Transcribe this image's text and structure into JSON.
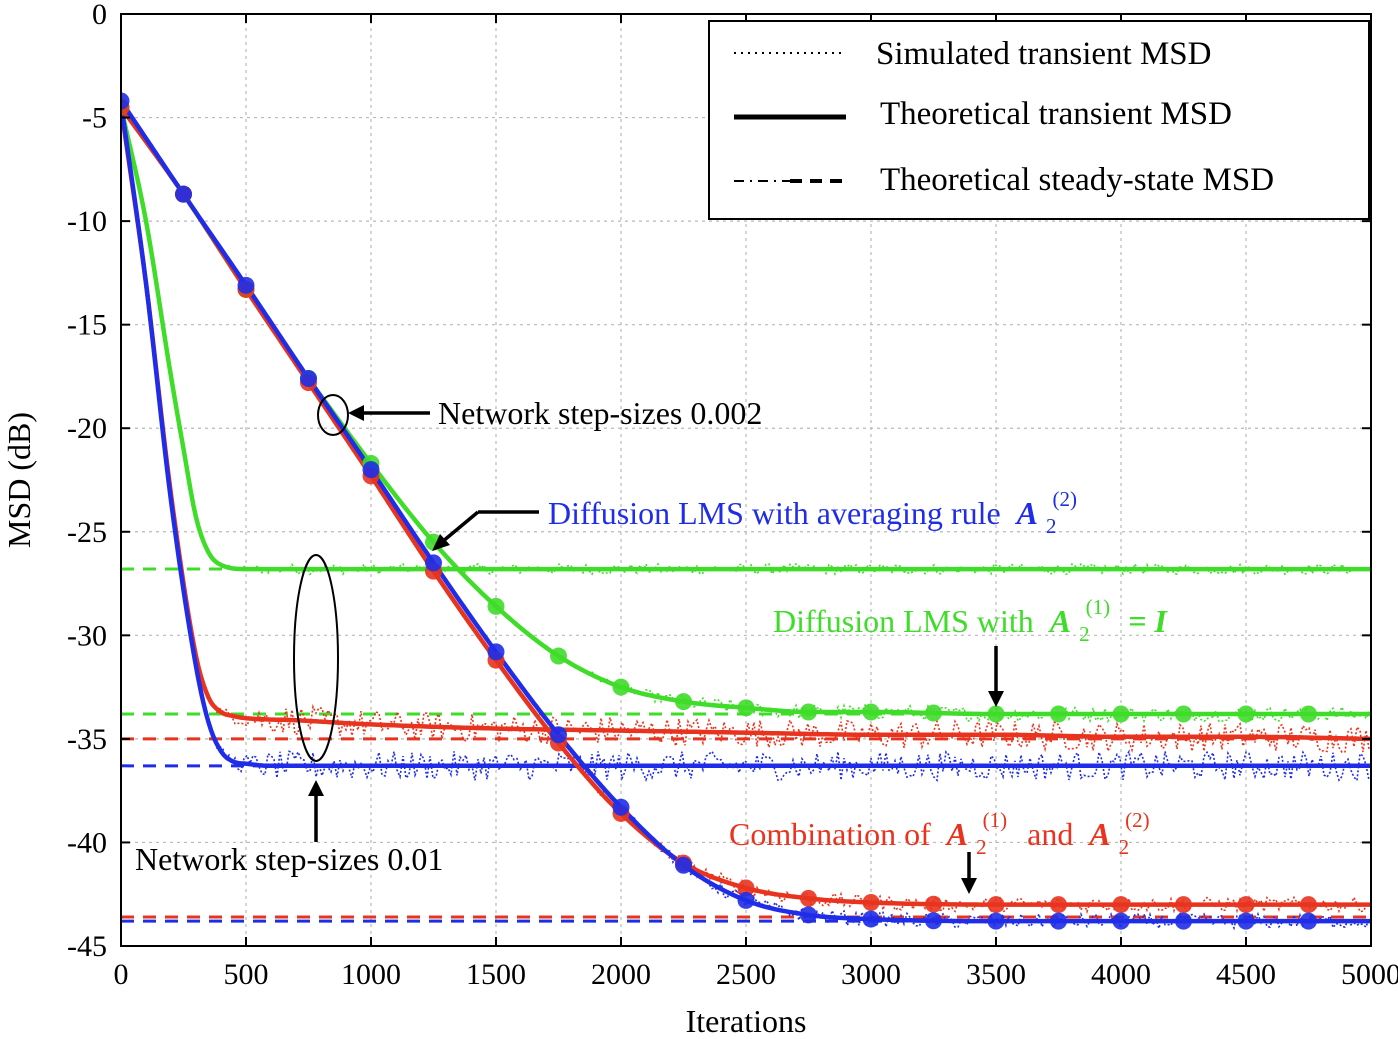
{
  "chart_data": {
    "type": "line",
    "title": "",
    "xlabel": "Iterations",
    "ylabel": "MSD (dB)",
    "xlim": [
      0,
      5000
    ],
    "ylim": [
      -45,
      0
    ],
    "xticks": [
      0,
      500,
      1000,
      1500,
      2000,
      2500,
      3000,
      3500,
      4000,
      4500,
      5000
    ],
    "yticks": [
      0,
      -5,
      -10,
      -15,
      -20,
      -25,
      -30,
      -35,
      -40,
      -45
    ],
    "xtick_labels": [
      "0",
      "500",
      "1000",
      "1500",
      "2000",
      "2500",
      "3000",
      "3500",
      "4000",
      "4500",
      "5000"
    ],
    "ytick_labels": [
      "0",
      "-5",
      "-10",
      "-15",
      "-20",
      "-25",
      "-30",
      "-35",
      "-40",
      "-45"
    ],
    "grid": true,
    "legend_position": "top-right",
    "legend": [
      {
        "label": "Simulated transient MSD",
        "style": "dotted"
      },
      {
        "label": "Theoretical transient MSD",
        "style": "solid"
      },
      {
        "label": "Theoretical steady-state MSD",
        "style": "dash-dot"
      }
    ],
    "colors": {
      "blue": "#1f2de8",
      "green": "#3fdc2a",
      "red": "#e8341f"
    },
    "series": [
      {
        "name": "Diffusion LMS with averaging rule, step-size 0.002",
        "color": "blue",
        "x": [
          0,
          250,
          500,
          750,
          1000,
          1250,
          1500,
          1750,
          2000,
          2250,
          2500,
          2750,
          3000,
          3500,
          4000,
          4500,
          5000
        ],
        "values": [
          -4.2,
          -8.7,
          -13.1,
          -17.6,
          -22.0,
          -26.5,
          -30.8,
          -34.8,
          -38.3,
          -41.1,
          -42.8,
          -43.5,
          -43.7,
          -43.8,
          -43.8,
          -43.8,
          -43.8
        ]
      },
      {
        "name": "Diffusion LMS with A2(1)=I, step-size 0.002",
        "color": "green",
        "x": [
          0,
          250,
          500,
          750,
          1000,
          1250,
          1500,
          1750,
          2000,
          2250,
          2500,
          2750,
          3000,
          3500,
          4000,
          4500,
          5000
        ],
        "values": [
          -4.5,
          -8.7,
          -13.3,
          -17.6,
          -21.7,
          -25.5,
          -28.6,
          -31.0,
          -32.5,
          -33.2,
          -33.5,
          -33.7,
          -33.7,
          -33.8,
          -33.8,
          -33.8,
          -33.8
        ]
      },
      {
        "name": "Combination of A2(1) and A2(2), step-size 0.002",
        "color": "red",
        "x": [
          0,
          250,
          500,
          750,
          1000,
          1250,
          1500,
          1750,
          2000,
          2250,
          2500,
          2750,
          3000,
          3500,
          4000,
          4500,
          5000
        ],
        "values": [
          -4.5,
          -8.7,
          -13.3,
          -17.8,
          -22.3,
          -26.9,
          -31.2,
          -35.2,
          -38.6,
          -41.0,
          -42.2,
          -42.7,
          -42.9,
          -43.0,
          -43.0,
          -43.0,
          -43.0
        ]
      },
      {
        "name": "Diffusion LMS with averaging rule, step-size 0.01",
        "color": "blue",
        "x": [
          0,
          100,
          200,
          300,
          350,
          400,
          450,
          500,
          600,
          800,
          1000,
          2000,
          3000,
          4000,
          5000
        ],
        "values": [
          -4.3,
          -13.0,
          -23.5,
          -31.5,
          -34.2,
          -35.6,
          -36.1,
          -36.2,
          -36.3,
          -36.3,
          -36.3,
          -36.3,
          -36.3,
          -36.3,
          -36.3
        ]
      },
      {
        "name": "Diffusion LMS with A2(1)=I, step-size 0.01",
        "color": "green",
        "x": [
          0,
          100,
          200,
          250,
          300,
          350,
          400,
          500,
          600,
          800,
          1000,
          2000,
          3000,
          4000,
          5000
        ],
        "values": [
          -4.5,
          -10.0,
          -17.5,
          -21.0,
          -24.3,
          -26.0,
          -26.6,
          -26.8,
          -26.8,
          -26.8,
          -26.8,
          -26.8,
          -26.8,
          -26.8,
          -26.8
        ]
      },
      {
        "name": "Combination of A2(1) and A2(2), step-size 0.01",
        "color": "red",
        "x": [
          0,
          100,
          200,
          300,
          350,
          400,
          450,
          500,
          700,
          1000,
          1500,
          2000,
          2500,
          3000,
          3500,
          4000,
          4500,
          5000
        ],
        "values": [
          -4.5,
          -13.0,
          -23.2,
          -31.0,
          -33.0,
          -33.7,
          -33.9,
          -34.0,
          -34.1,
          -34.3,
          -34.5,
          -34.6,
          -34.7,
          -34.8,
          -34.8,
          -34.9,
          -34.9,
          -35.0
        ]
      }
    ],
    "steady_state": [
      {
        "value": -26.8,
        "color": "green"
      },
      {
        "value": -33.8,
        "color": "green"
      },
      {
        "value": -35.0,
        "color": "red"
      },
      {
        "value": -36.3,
        "color": "blue"
      },
      {
        "value": -43.6,
        "color": "red"
      },
      {
        "value": -43.8,
        "color": "blue"
      }
    ],
    "annotations": [
      {
        "text": "Network step-sizes 0.002"
      },
      {
        "text": "Network step-sizes 0.01"
      },
      {
        "text": "Diffusion LMS with averaging rule",
        "math": "A",
        "sub": "2",
        "sup": "(2)",
        "color": "blue"
      },
      {
        "text": "Diffusion LMS with",
        "math": "A",
        "sub": "2",
        "sup": "(1)",
        "tail": "= I",
        "color": "green"
      },
      {
        "text": "Combination of",
        "math": "A",
        "sub": "2",
        "sup": "(1)",
        "mid": "and",
        "math2": "A",
        "sub2": "2",
        "sup2": "(2)",
        "color": "red"
      }
    ]
  }
}
